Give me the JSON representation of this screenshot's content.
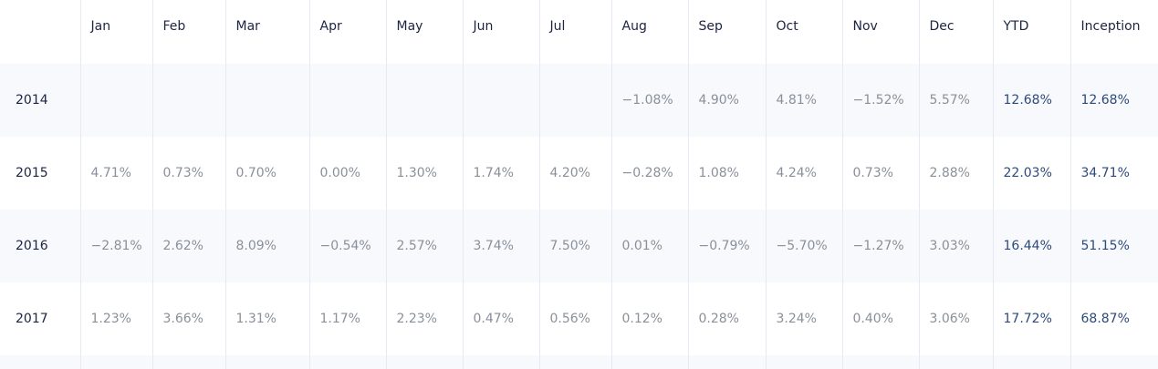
{
  "table": {
    "columns": [
      "Jan",
      "Feb",
      "Mar",
      "Apr",
      "May",
      "Jun",
      "Jul",
      "Aug",
      "Sep",
      "Oct",
      "Nov",
      "Dec",
      "YTD",
      "Inception"
    ],
    "rows": [
      {
        "year": "2014",
        "cells": [
          null,
          null,
          null,
          null,
          null,
          null,
          null,
          "−1.08%",
          "4.90%",
          "4.81%",
          "−1.52%",
          "5.57%",
          "12.68%",
          "12.68%"
        ]
      },
      {
        "year": "2015",
        "cells": [
          "4.71%",
          "0.73%",
          "0.70%",
          "0.00%",
          "1.30%",
          "1.74%",
          "4.20%",
          "−0.28%",
          "1.08%",
          "4.24%",
          "0.73%",
          "2.88%",
          "22.03%",
          "34.71%"
        ]
      },
      {
        "year": "2016",
        "cells": [
          "−2.81%",
          "2.62%",
          "8.09%",
          "−0.54%",
          "2.57%",
          "3.74%",
          "7.50%",
          "0.01%",
          "−0.79%",
          "−5.70%",
          "−1.27%",
          "3.03%",
          "16.44%",
          "51.15%"
        ]
      },
      {
        "year": "2017",
        "cells": [
          "1.23%",
          "3.66%",
          "1.31%",
          "1.17%",
          "2.23%",
          "0.47%",
          "0.56%",
          "0.12%",
          "0.28%",
          "3.24%",
          "0.40%",
          "3.06%",
          "17.72%",
          "68.87%"
        ]
      }
    ]
  }
}
